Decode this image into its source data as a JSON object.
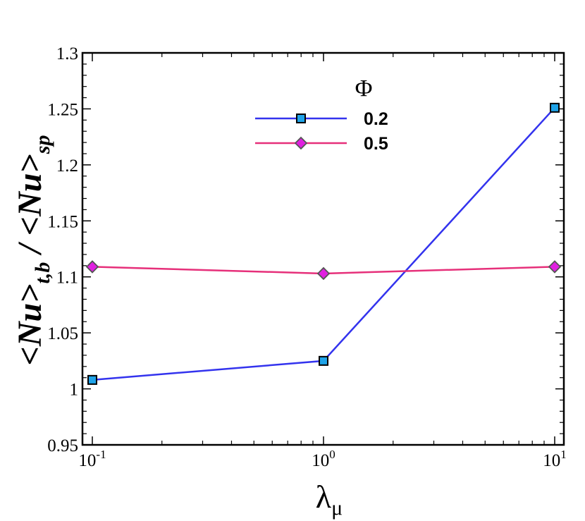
{
  "chart_data": {
    "type": "line",
    "x_scale": "log",
    "xlim": [
      0.1,
      10
    ],
    "ylim": [
      0.95,
      1.3
    ],
    "xlabel": {
      "base": "λ",
      "sub": "μ"
    },
    "ylabel": {
      "part1": "<Nu>",
      "sub1": "t,b",
      "part2": " / <Nu>",
      "sub2": "sp"
    },
    "y_ticks": [
      {
        "value": 0.95,
        "label": "0.95"
      },
      {
        "value": 1.0,
        "label": "1"
      },
      {
        "value": 1.05,
        "label": "1.05"
      },
      {
        "value": 1.1,
        "label": "1.1"
      },
      {
        "value": 1.15,
        "label": "1.15"
      },
      {
        "value": 1.2,
        "label": "1.2"
      },
      {
        "value": 1.25,
        "label": "1.25"
      },
      {
        "value": 1.3,
        "label": "1.3"
      }
    ],
    "x_ticks": [
      {
        "value": 0.1,
        "base": "10",
        "exp": "-1"
      },
      {
        "value": 1,
        "base": "10",
        "exp": "0"
      },
      {
        "value": 10,
        "base": "10",
        "exp": "1"
      }
    ],
    "legend_title": "Φ",
    "legend_position": "top-center",
    "grid": false,
    "series": [
      {
        "name": "0.2",
        "marker": "square",
        "color": "#3333ee",
        "marker_fill": "#1fa3e8",
        "x": [
          0.1,
          1,
          10
        ],
        "y": [
          1.008,
          1.025,
          1.251
        ]
      },
      {
        "name": "0.5",
        "marker": "diamond",
        "color": "#e6307a",
        "marker_fill": "#e020e0",
        "x": [
          0.1,
          1,
          10
        ],
        "y": [
          1.109,
          1.103,
          1.109
        ]
      }
    ]
  }
}
